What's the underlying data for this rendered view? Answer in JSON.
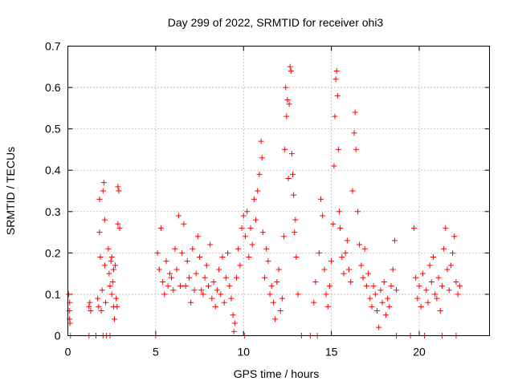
{
  "chart_data": {
    "type": "scatter",
    "title": "Day 299 of 2022, SRMTID for receiver ohi3",
    "xlabel": "GPS time / hours",
    "ylabel": "SRMTID / TECUs",
    "xlim": [
      0,
      24
    ],
    "ylim": [
      0,
      0.7
    ],
    "xticks": [
      0,
      5,
      10,
      15,
      20
    ],
    "xtick_labels": [
      "0",
      "5",
      "10",
      "15",
      "20"
    ],
    "yticks": [
      0,
      0.1,
      0.2,
      0.3,
      0.4,
      0.5,
      0.6,
      0.7
    ],
    "ytick_labels": [
      "0",
      "0.1",
      "0.2",
      "0.3",
      "0.4",
      "0.5",
      "0.6",
      "0.7"
    ],
    "grid": true,
    "marker": "+",
    "series": [
      {
        "name": "SRMTID",
        "color": "#ff0000",
        "points": [
          [
            0.05,
            0.1
          ],
          [
            0.08,
            0.06
          ],
          [
            0.1,
            0.04
          ],
          [
            0.12,
            0.03
          ],
          [
            0.1,
            0.08
          ],
          [
            0.15,
            0.0
          ],
          [
            1.2,
            0.07
          ],
          [
            1.25,
            0.08
          ],
          [
            1.3,
            0.06
          ],
          [
            1.2,
            0.0
          ],
          [
            1.6,
            0.0
          ],
          [
            1.7,
            0.09
          ],
          [
            1.75,
            0.07
          ],
          [
            1.8,
            0.25
          ],
          [
            1.8,
            0.33
          ],
          [
            1.85,
            0.19
          ],
          [
            1.9,
            0.06
          ],
          [
            1.95,
            0.11
          ],
          [
            2.0,
            0.35
          ],
          [
            2.05,
            0.37
          ],
          [
            2.1,
            0.28
          ],
          [
            2.1,
            0.17
          ],
          [
            2.15,
            0.08
          ],
          [
            2.0,
            0.0
          ],
          [
            2.2,
            0.0
          ],
          [
            2.3,
            0.21
          ],
          [
            2.35,
            0.15
          ],
          [
            2.4,
            0.12
          ],
          [
            2.45,
            0.18
          ],
          [
            2.5,
            0.1
          ],
          [
            2.55,
            0.13
          ],
          [
            2.6,
            0.07
          ],
          [
            2.65,
            0.04
          ],
          [
            2.7,
            0.17
          ],
          [
            2.75,
            0.09
          ],
          [
            2.8,
            0.07
          ],
          [
            2.85,
            0.27
          ],
          [
            2.9,
            0.35
          ],
          [
            2.85,
            0.36
          ],
          [
            2.95,
            0.26
          ],
          [
            2.6,
            0.16
          ],
          [
            2.5,
            0.19
          ],
          [
            2.4,
            0.0
          ],
          [
            5.0,
            0.0
          ],
          [
            5.1,
            0.2
          ],
          [
            5.2,
            0.16
          ],
          [
            5.3,
            0.26
          ],
          [
            5.4,
            0.13
          ],
          [
            5.5,
            0.1
          ],
          [
            5.6,
            0.18
          ],
          [
            5.7,
            0.12
          ],
          [
            5.8,
            0.15
          ],
          [
            5.9,
            0.14
          ],
          [
            6.0,
            0.11
          ],
          [
            6.1,
            0.21
          ],
          [
            6.2,
            0.16
          ],
          [
            6.3,
            0.29
          ],
          [
            6.4,
            0.12
          ],
          [
            6.5,
            0.2
          ],
          [
            6.6,
            0.27
          ],
          [
            6.7,
            0.12
          ],
          [
            6.8,
            0.18
          ],
          [
            6.9,
            0.14
          ],
          [
            7.0,
            0.08
          ],
          [
            7.1,
            0.21
          ],
          [
            7.2,
            0.11
          ],
          [
            7.3,
            0.15
          ],
          [
            7.4,
            0.24
          ],
          [
            7.5,
            0.19
          ],
          [
            7.6,
            0.11
          ],
          [
            7.7,
            0.1
          ],
          [
            7.8,
            0.14
          ],
          [
            7.9,
            0.17
          ],
          [
            8.0,
            0.12
          ],
          [
            8.1,
            0.22
          ],
          [
            8.2,
            0.09
          ],
          [
            8.3,
            0.13
          ],
          [
            8.4,
            0.07
          ],
          [
            8.5,
            0.11
          ],
          [
            8.6,
            0.16
          ],
          [
            8.7,
            0.1
          ],
          [
            8.8,
            0.19
          ],
          [
            8.9,
            0.08
          ],
          [
            9.0,
            0.14
          ],
          [
            9.1,
            0.2
          ],
          [
            9.2,
            0.12
          ],
          [
            9.3,
            0.09
          ],
          [
            9.4,
            0.05
          ],
          [
            9.45,
            0.01
          ],
          [
            9.5,
            0.03
          ],
          [
            9.6,
            0.14
          ],
          [
            9.7,
            0.21
          ],
          [
            9.8,
            0.17
          ],
          [
            9.9,
            0.26
          ],
          [
            10.0,
            0.29
          ],
          [
            10.05,
            0.0
          ],
          [
            10.1,
            0.24
          ],
          [
            10.2,
            0.3
          ],
          [
            10.3,
            0.19
          ],
          [
            10.4,
            0.26
          ],
          [
            10.5,
            0.22
          ],
          [
            10.6,
            0.33
          ],
          [
            10.7,
            0.28
          ],
          [
            10.8,
            0.35
          ],
          [
            10.9,
            0.39
          ],
          [
            11.0,
            0.47
          ],
          [
            11.05,
            0.43
          ],
          [
            11.1,
            0.25
          ],
          [
            11.2,
            0.14
          ],
          [
            11.3,
            0.21
          ],
          [
            11.4,
            0.18
          ],
          [
            11.5,
            0.1
          ],
          [
            11.6,
            0.12
          ],
          [
            11.7,
            0.08
          ],
          [
            11.8,
            0.04
          ],
          [
            11.9,
            0.13
          ],
          [
            12.0,
            0.16
          ],
          [
            12.1,
            0.06
          ],
          [
            12.2,
            0.09
          ],
          [
            12.3,
            0.24
          ],
          [
            12.35,
            0.45
          ],
          [
            12.4,
            0.6
          ],
          [
            12.45,
            0.53
          ],
          [
            12.5,
            0.57
          ],
          [
            12.55,
            0.38
          ],
          [
            12.6,
            0.56
          ],
          [
            12.65,
            0.65
          ],
          [
            12.7,
            0.64
          ],
          [
            12.75,
            0.44
          ],
          [
            12.8,
            0.39
          ],
          [
            12.85,
            0.34
          ],
          [
            12.9,
            0.25
          ],
          [
            12.95,
            0.28
          ],
          [
            13.0,
            0.19
          ],
          [
            13.1,
            0.1
          ],
          [
            13.3,
            0.0
          ],
          [
            13.8,
            0.0
          ],
          [
            14.0,
            0.08
          ],
          [
            14.1,
            0.13
          ],
          [
            14.2,
            0.0
          ],
          [
            14.3,
            0.2
          ],
          [
            14.4,
            0.33
          ],
          [
            14.5,
            0.29
          ],
          [
            14.6,
            0.16
          ],
          [
            14.7,
            0.1
          ],
          [
            14.8,
            0.07
          ],
          [
            14.9,
            0.12
          ],
          [
            15.0,
            0.18
          ],
          [
            15.1,
            0.27
          ],
          [
            15.15,
            0.41
          ],
          [
            15.2,
            0.53
          ],
          [
            15.25,
            0.62
          ],
          [
            15.3,
            0.64
          ],
          [
            15.35,
            0.58
          ],
          [
            15.4,
            0.45
          ],
          [
            15.45,
            0.3
          ],
          [
            15.5,
            0.26
          ],
          [
            15.6,
            0.19
          ],
          [
            15.7,
            0.15
          ],
          [
            15.8,
            0.2
          ],
          [
            15.9,
            0.23
          ],
          [
            16.0,
            0.16
          ],
          [
            16.1,
            0.13
          ],
          [
            16.2,
            0.35
          ],
          [
            16.3,
            0.49
          ],
          [
            16.35,
            0.54
          ],
          [
            16.4,
            0.45
          ],
          [
            16.5,
            0.3
          ],
          [
            16.6,
            0.22
          ],
          [
            16.7,
            0.17
          ],
          [
            16.8,
            0.14
          ],
          [
            16.9,
            0.21
          ],
          [
            17.0,
            0.12
          ],
          [
            17.1,
            0.15
          ],
          [
            17.2,
            0.09
          ],
          [
            17.3,
            0.07
          ],
          [
            17.4,
            0.12
          ],
          [
            17.5,
            0.1
          ],
          [
            17.6,
            0.06
          ],
          [
            17.7,
            0.02
          ],
          [
            17.8,
            0.11
          ],
          [
            17.9,
            0.08
          ],
          [
            18.0,
            0.13
          ],
          [
            18.1,
            0.05
          ],
          [
            18.2,
            0.09
          ],
          [
            18.3,
            0.07
          ],
          [
            18.4,
            0.12
          ],
          [
            18.5,
            0.16
          ],
          [
            18.6,
            0.23
          ],
          [
            18.7,
            0.11
          ],
          [
            18.7,
            0.0
          ],
          [
            19.5,
            0.0
          ],
          [
            19.7,
            0.26
          ],
          [
            19.8,
            0.14
          ],
          [
            19.9,
            0.09
          ],
          [
            20.0,
            0.12
          ],
          [
            20.1,
            0.07
          ],
          [
            20.2,
            0.15
          ],
          [
            20.3,
            0.0
          ],
          [
            20.4,
            0.11
          ],
          [
            20.5,
            0.08
          ],
          [
            20.6,
            0.17
          ],
          [
            20.7,
            0.13
          ],
          [
            20.8,
            0.19
          ],
          [
            20.9,
            0.1
          ],
          [
            21.0,
            0.09
          ],
          [
            21.1,
            0.14
          ],
          [
            21.2,
            0.06
          ],
          [
            21.3,
            0.12
          ],
          [
            21.4,
            0.21
          ],
          [
            21.5,
            0.26
          ],
          [
            21.6,
            0.16
          ],
          [
            21.7,
            0.11
          ],
          [
            21.8,
            0.17
          ],
          [
            21.9,
            0.2
          ],
          [
            22.0,
            0.24
          ],
          [
            22.1,
            0.13
          ],
          [
            22.2,
            0.1
          ],
          [
            22.3,
            0.12
          ],
          [
            21.3,
            0.0
          ],
          [
            22.1,
            0.0
          ]
        ]
      }
    ]
  }
}
